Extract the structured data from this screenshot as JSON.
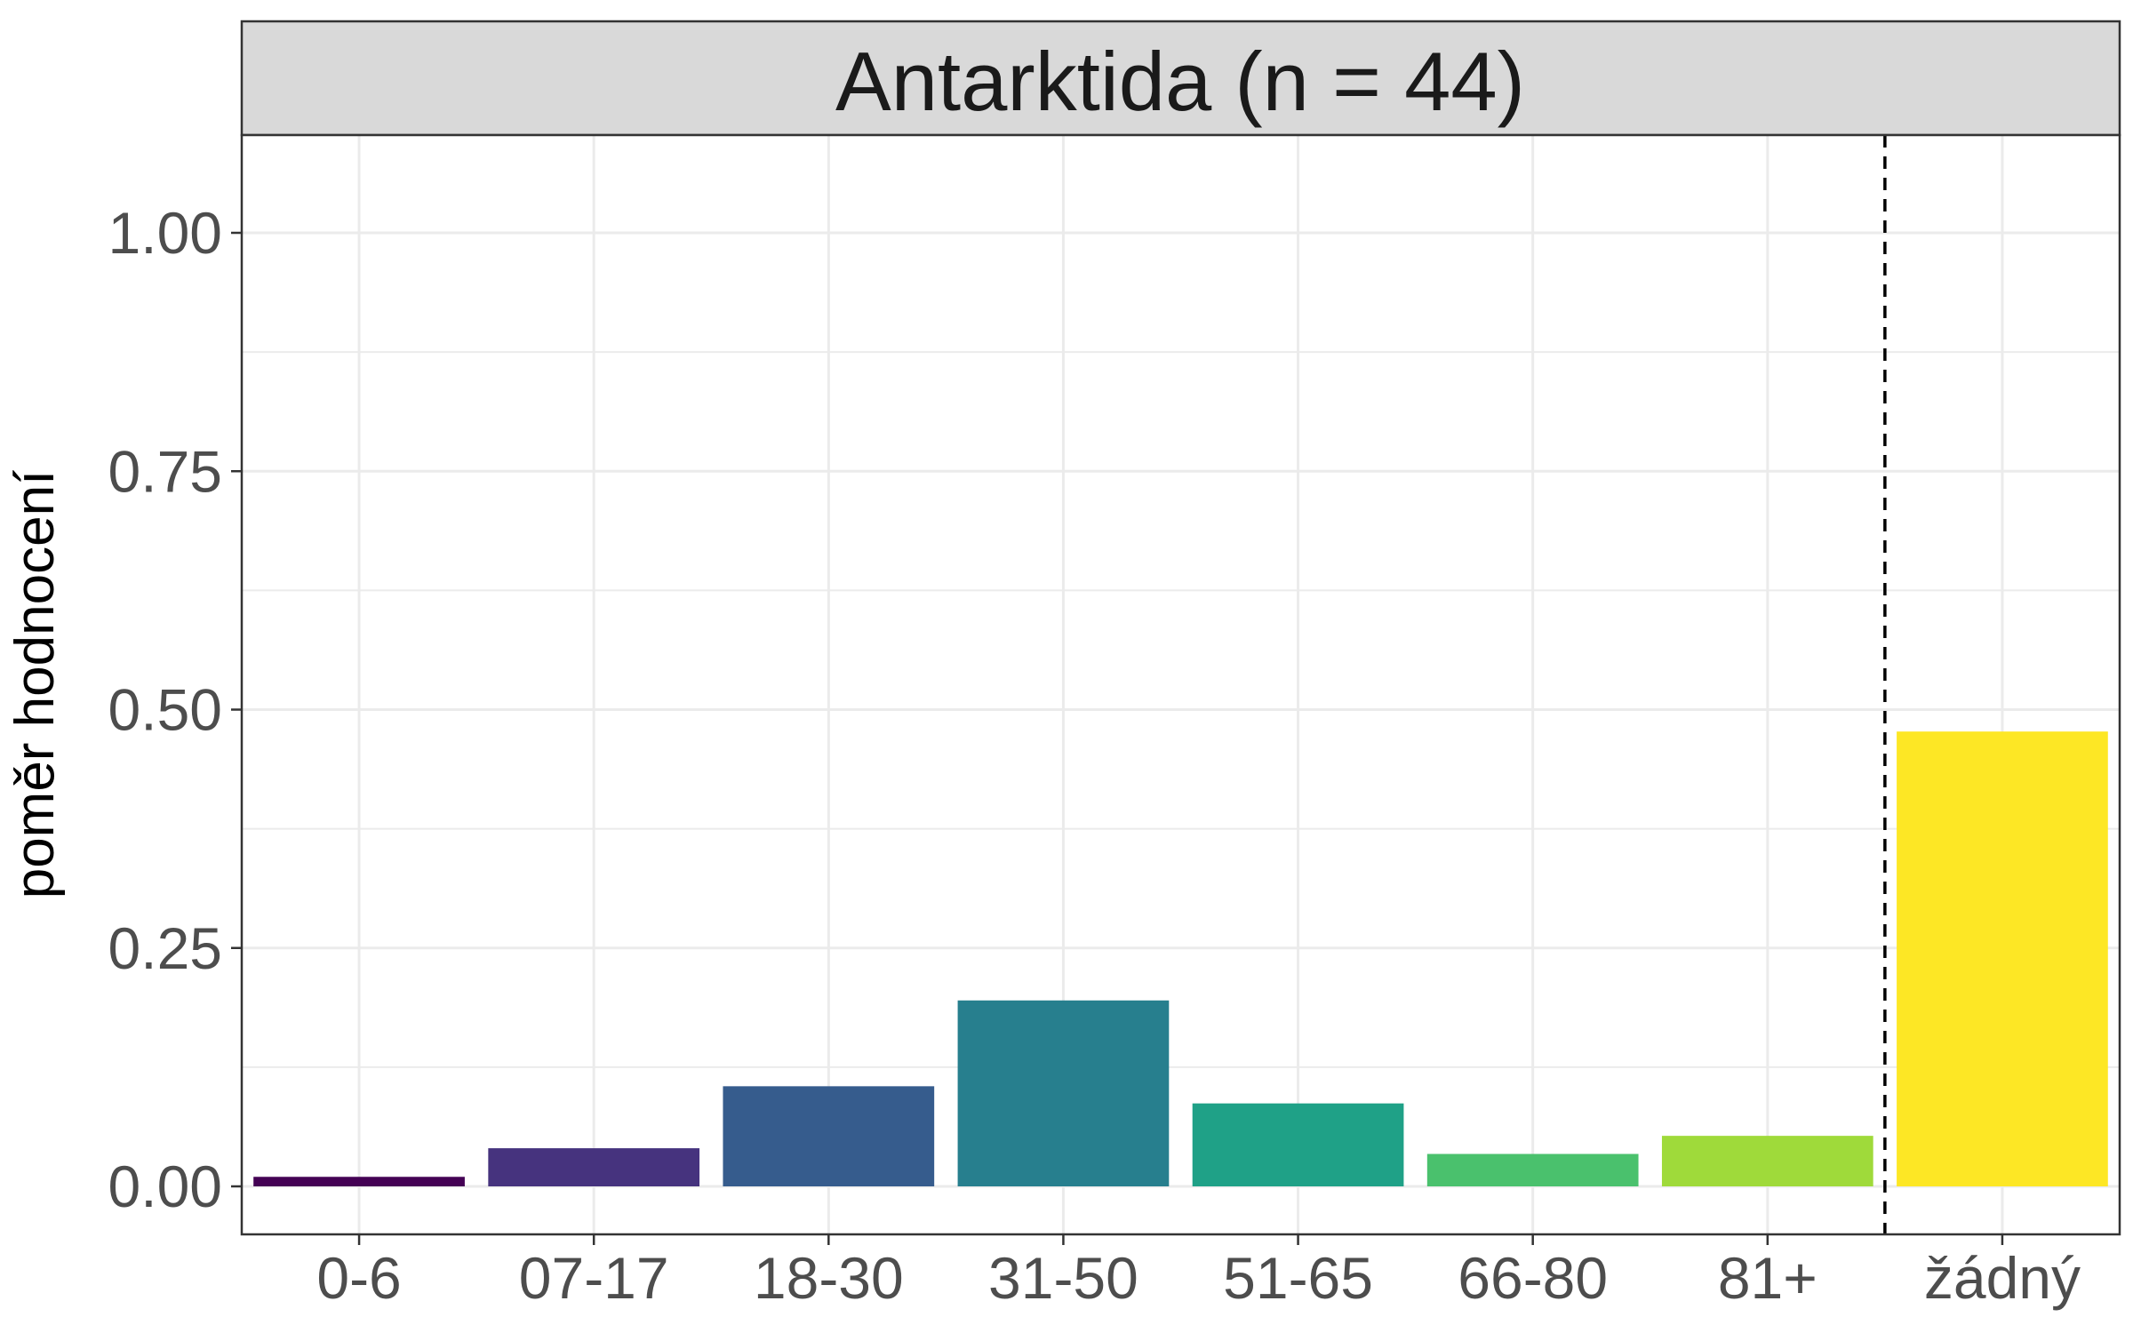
{
  "chart_data": {
    "type": "bar",
    "title": "Antarktida (n = 44)",
    "xlabel": "",
    "ylabel": "poměr hodnocení",
    "categories": [
      "0-6",
      "07-17",
      "18-30",
      "31-50",
      "51-65",
      "66-80",
      "81+",
      "žádný"
    ],
    "values": [
      0.01,
      0.04,
      0.105,
      0.195,
      0.087,
      0.034,
      0.053,
      0.477
    ],
    "colors": [
      "#440154",
      "#46337E",
      "#365C8D",
      "#277F8E",
      "#1FA187",
      "#4AC16D",
      "#9FDA3A",
      "#FDE725"
    ],
    "ylim": [
      -0.05,
      1.1
    ],
    "yticks": [
      "0.00",
      "0.25",
      "0.50",
      "0.75",
      "1.00"
    ],
    "ytick_values": [
      0,
      0.25,
      0.5,
      0.75,
      1.0
    ],
    "separator_after_category": "81+",
    "grid": true,
    "legend": "none"
  }
}
